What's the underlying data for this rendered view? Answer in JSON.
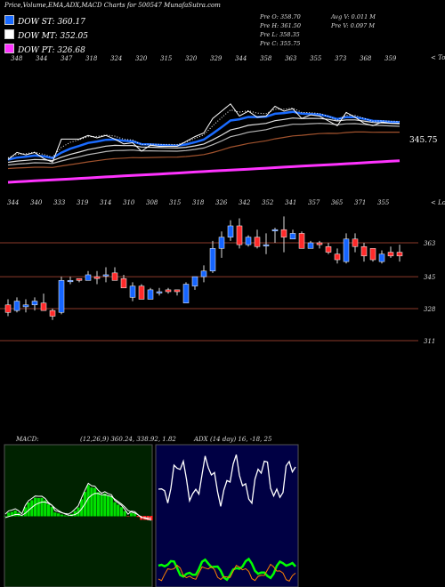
{
  "header": {
    "title": "Price,Volume,EMA,ADX,MACD Charts for 500547 MunafaSutra.com",
    "legend": [
      {
        "label": "DOW ST: 360.17",
        "color": "#1a6bff"
      },
      {
        "label": "DOW MT: 352.05",
        "color": "#ffffff"
      },
      {
        "label": "DOW PT: 326.68",
        "color": "#ff33ff"
      }
    ],
    "stats_left": [
      "Pre   O: 358.70",
      "Pre   H: 361.50",
      "Pre   L: 358.35",
      "Pre   C: 355.75"
    ],
    "stats_right": [
      "Avg V: 0.011 M",
      "Pre   V: 0.097 M"
    ]
  },
  "ema_panel": {
    "top_axis_label": "< Tops",
    "tops": [
      "348",
      "344",
      "347",
      "318",
      "324",
      "320",
      "315",
      "320",
      "329",
      "344",
      "358",
      "363",
      "355",
      "373",
      "368",
      "359"
    ],
    "bottoms": [
      "344",
      "340",
      "333",
      "319",
      "314",
      "310",
      "308",
      "315",
      "318",
      "326",
      "342",
      "352",
      "341",
      "357",
      "365",
      "371",
      "355"
    ],
    "last_price": "345.75",
    "colors": {
      "price": "#ffffff",
      "ema_short": "#1a6bff",
      "ema_mid": "#d8d8d8",
      "ema_mid2": "#b8b8b8",
      "ema_long": "#a0522d",
      "ema_xlong": "#ff33ff"
    }
  },
  "candle_panel": {
    "lows_label": "< Lows",
    "levels": [
      "363",
      "345",
      "328",
      "311"
    ]
  },
  "macd_panel": {
    "title": "MACD:",
    "params": "(12,26,9) 360.24, 338.92, 1.82",
    "colors": {
      "bg": "#002200",
      "pos": "#00e000",
      "neg": "#ff2020"
    }
  },
  "adx_panel": {
    "title": "ADX",
    "params": "(14 day) 16, -18, 25",
    "colors": {
      "bg": "#000044",
      "adx": "#ffffff",
      "plus": "#00ff00",
      "minus": "#ff8000"
    }
  },
  "chart_data": {
    "type": "candlestick",
    "title": "Price,Volume,EMA,ADX,MACD Charts for 500547 MunafaSutra.com",
    "price_levels": [
      363,
      345,
      328,
      311
    ],
    "candles": [
      {
        "o": 330,
        "h": 333,
        "l": 324,
        "c": 326
      },
      {
        "o": 327,
        "h": 334,
        "l": 326,
        "c": 332
      },
      {
        "o": 329,
        "h": 333,
        "l": 326,
        "c": 330
      },
      {
        "o": 330,
        "h": 334,
        "l": 327,
        "c": 332
      },
      {
        "o": 331,
        "h": 336,
        "l": 327,
        "c": 327
      },
      {
        "o": 327,
        "h": 328,
        "l": 322,
        "c": 324
      },
      {
        "o": 326,
        "h": 345,
        "l": 325,
        "c": 343
      },
      {
        "o": 343,
        "h": 345,
        "l": 341,
        "c": 343
      },
      {
        "o": 344,
        "h": 344,
        "l": 342,
        "c": 343
      },
      {
        "o": 343,
        "h": 348,
        "l": 343,
        "c": 346
      },
      {
        "o": 345,
        "h": 348,
        "l": 341,
        "c": 344
      },
      {
        "o": 346,
        "h": 350,
        "l": 342,
        "c": 346
      },
      {
        "o": 347,
        "h": 350,
        "l": 343,
        "c": 343
      },
      {
        "o": 344,
        "h": 346,
        "l": 339,
        "c": 339
      },
      {
        "o": 334,
        "h": 342,
        "l": 332,
        "c": 340
      },
      {
        "o": 340,
        "h": 341,
        "l": 333,
        "c": 333
      },
      {
        "o": 333,
        "h": 339,
        "l": 333,
        "c": 338
      },
      {
        "o": 337,
        "h": 339,
        "l": 335,
        "c": 337
      },
      {
        "o": 338,
        "h": 339,
        "l": 336,
        "c": 337
      },
      {
        "o": 338,
        "h": 338,
        "l": 335,
        "c": 337
      },
      {
        "o": 331,
        "h": 342,
        "l": 331,
        "c": 341
      },
      {
        "o": 340,
        "h": 345,
        "l": 338,
        "c": 345
      },
      {
        "o": 345,
        "h": 351,
        "l": 342,
        "c": 348
      },
      {
        "o": 348,
        "h": 364,
        "l": 347,
        "c": 360
      },
      {
        "o": 360,
        "h": 369,
        "l": 355,
        "c": 366
      },
      {
        "o": 366,
        "h": 375,
        "l": 364,
        "c": 372
      },
      {
        "o": 372,
        "h": 376,
        "l": 360,
        "c": 362
      },
      {
        "o": 362,
        "h": 367,
        "l": 361,
        "c": 366
      },
      {
        "o": 366,
        "h": 370,
        "l": 360,
        "c": 361
      },
      {
        "o": 362,
        "h": 368,
        "l": 357,
        "c": 362
      },
      {
        "o": 370,
        "h": 371,
        "l": 363,
        "c": 370
      },
      {
        "o": 370,
        "h": 377,
        "l": 358,
        "c": 366
      },
      {
        "o": 365,
        "h": 370,
        "l": 365,
        "c": 368
      },
      {
        "o": 368,
        "h": 369,
        "l": 360,
        "c": 360
      },
      {
        "o": 360,
        "h": 364,
        "l": 360,
        "c": 363
      },
      {
        "o": 363,
        "h": 364,
        "l": 360,
        "c": 362
      },
      {
        "o": 361,
        "h": 363,
        "l": 357,
        "c": 358
      },
      {
        "o": 357,
        "h": 360,
        "l": 352,
        "c": 354
      },
      {
        "o": 353,
        "h": 368,
        "l": 352,
        "c": 365
      },
      {
        "o": 365,
        "h": 368,
        "l": 358,
        "c": 361
      },
      {
        "o": 361,
        "h": 363,
        "l": 353,
        "c": 356
      },
      {
        "o": 360,
        "h": 360,
        "l": 353,
        "c": 354
      },
      {
        "o": 353,
        "h": 359,
        "l": 352,
        "c": 357
      },
      {
        "o": 358,
        "h": 361,
        "l": 355,
        "c": 356
      },
      {
        "o": 358,
        "h": 362,
        "l": 353,
        "c": 356
      }
    ]
  }
}
